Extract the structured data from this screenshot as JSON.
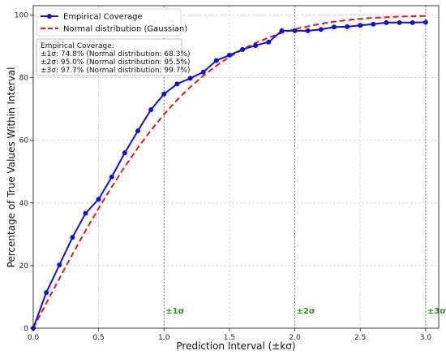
{
  "chart_data": {
    "type": "line",
    "xlabel": "Prediction Interval (±kσ)",
    "ylabel": "Percentage of True Values Within Interval",
    "xlim": [
      0.0,
      3.1
    ],
    "ylim": [
      0,
      103
    ],
    "xticks": [
      0.0,
      0.5,
      1.0,
      1.5,
      2.0,
      2.5,
      3.0
    ],
    "xtick_labels": [
      "0.0",
      "0.5",
      "1.0",
      "1.5",
      "2.0",
      "2.5",
      "3.0"
    ],
    "yticks": [
      0,
      20,
      40,
      60,
      80,
      100
    ],
    "ytick_labels": [
      "0",
      "20",
      "40",
      "60",
      "80",
      "100"
    ],
    "grid": true,
    "legend_placement": "top-left",
    "series": [
      {
        "name": "Empirical Coverage",
        "style": "solid-with-markers",
        "color": "#1010d0",
        "x": [
          0.0,
          0.1,
          0.2,
          0.3,
          0.4,
          0.5,
          0.6,
          0.7,
          0.8,
          0.9,
          1.0,
          1.1,
          1.2,
          1.3,
          1.4,
          1.5,
          1.6,
          1.7,
          1.8,
          1.9,
          2.0,
          2.1,
          2.2,
          2.3,
          2.4,
          2.5,
          2.6,
          2.7,
          2.8,
          2.9,
          3.0
        ],
        "y": [
          0.0,
          11.4,
          20.2,
          29.0,
          36.7,
          41.2,
          48.3,
          56.0,
          63.0,
          69.8,
          74.8,
          78.0,
          79.8,
          81.8,
          85.5,
          87.2,
          89.0,
          90.3,
          91.4,
          95.0,
          95.0,
          95.0,
          95.4,
          96.2,
          96.3,
          96.7,
          97.1,
          97.6,
          97.6,
          97.6,
          97.7
        ]
      },
      {
        "name": "Normal distribution (Gaussian)",
        "style": "dashed",
        "color": "#e01818",
        "x": [
          0.0,
          0.1,
          0.2,
          0.3,
          0.4,
          0.5,
          0.6,
          0.7,
          0.8,
          0.9,
          1.0,
          1.1,
          1.2,
          1.3,
          1.4,
          1.5,
          1.6,
          1.7,
          1.8,
          1.9,
          2.0,
          2.1,
          2.2,
          2.3,
          2.4,
          2.5,
          2.6,
          2.7,
          2.8,
          2.9,
          3.0
        ],
        "y": [
          0.0,
          8.0,
          15.9,
          23.6,
          31.1,
          38.3,
          45.1,
          51.6,
          57.6,
          63.2,
          68.3,
          72.9,
          77.0,
          80.6,
          83.8,
          86.6,
          89.0,
          91.1,
          92.8,
          94.3,
          95.5,
          96.4,
          97.2,
          97.9,
          98.4,
          98.8,
          99.1,
          99.3,
          99.5,
          99.6,
          99.7
        ]
      }
    ],
    "vlines": [
      {
        "x": 1.0,
        "label": "±1σ",
        "color": "#2e8b22"
      },
      {
        "x": 2.0,
        "label": "±2σ",
        "color": "#2e8b22"
      },
      {
        "x": 3.0,
        "label": "±3σ",
        "color": "#2e8b22"
      }
    ],
    "annotation": {
      "lines": [
        "Empirical Coverage:",
        "±1σ: 74.8% (Normal distribution: 68.3%)",
        "±2σ: 95.0% (Normal distribution: 95.5%)",
        "±3σ: 97.7% (Normal distribution: 99.7%)"
      ]
    }
  }
}
